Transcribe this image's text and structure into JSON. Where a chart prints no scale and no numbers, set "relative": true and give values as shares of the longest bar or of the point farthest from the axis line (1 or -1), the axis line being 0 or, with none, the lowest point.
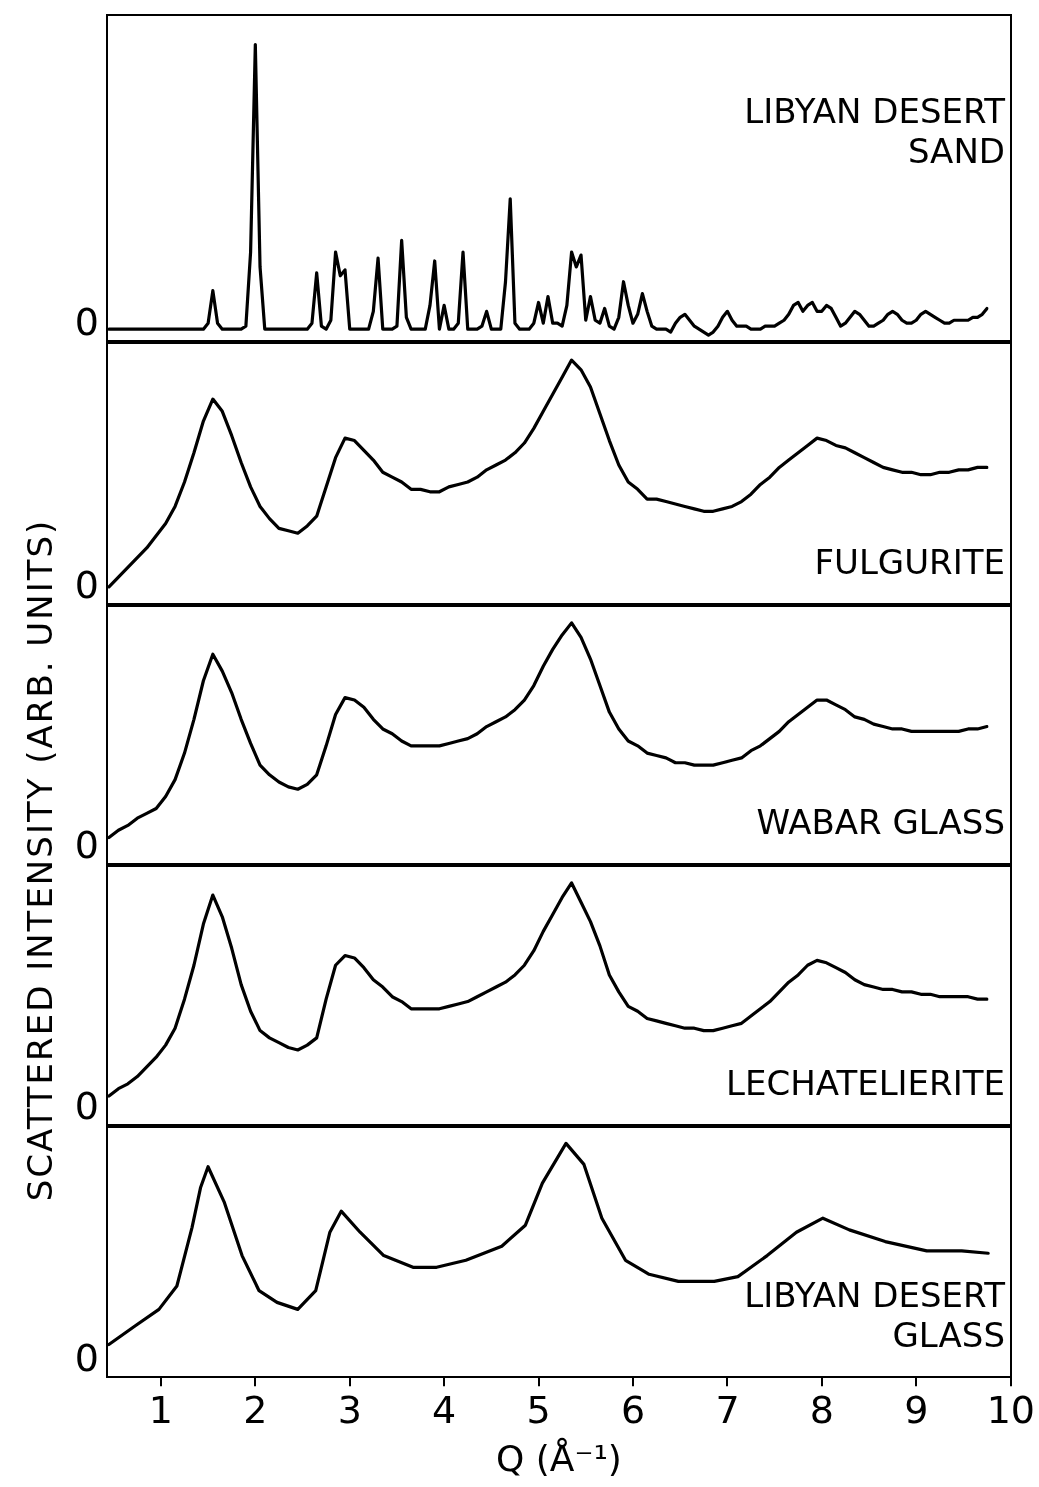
{
  "chart_data": [
    {
      "type": "line",
      "relative": true,
      "tick_labels": false,
      "annotations": [
        "0"
      ],
      "categories": [
        null,
        null,
        null,
        null,
        null,
        null,
        null,
        null,
        null,
        null,
        null,
        null,
        null,
        null,
        null,
        null,
        null,
        null,
        null,
        null,
        null,
        null,
        null,
        null,
        null,
        null,
        null,
        null,
        null,
        null,
        null,
        null,
        null,
        null,
        null,
        null,
        null,
        null,
        null,
        null,
        null,
        null,
        null,
        null,
        null,
        null,
        null,
        null,
        null,
        null,
        null,
        null,
        null,
        null,
        null,
        null,
        null,
        null,
        null,
        null,
        null,
        null,
        null,
        null,
        null,
        null,
        null,
        null,
        null,
        null,
        null,
        null,
        null,
        null,
        null,
        null,
        null,
        null,
        null,
        null,
        null,
        null,
        null,
        null,
        null,
        null,
        null,
        null,
        null,
        null,
        null,
        null,
        null,
        null,
        null,
        null,
        null,
        null,
        null,
        null,
        null,
        null,
        null,
        null,
        null,
        null,
        null,
        null,
        null,
        null,
        null,
        null,
        null,
        null,
        null,
        null,
        null,
        null,
        null,
        null,
        null,
        null,
        null,
        null,
        null,
        null,
        null,
        null,
        null,
        null,
        null,
        null,
        null,
        null,
        null,
        null,
        null,
        null,
        null,
        null,
        null,
        null,
        null,
        null,
        null,
        null,
        null,
        null,
        null,
        null,
        null,
        null,
        null,
        null,
        null,
        null,
        null,
        null,
        null,
        null,
        null,
        null,
        null,
        null,
        null,
        null,
        null,
        null,
        null,
        null,
        null,
        null,
        null,
        null,
        null,
        null,
        null,
        null,
        null,
        null,
        null,
        null,
        null,
        null,
        null,
        null,
        null
      ],
      "series": [
        {
          "name": "LIBYAN DESERT SAND",
          "color": "#000000",
          "values": [
            0.04,
            0.04,
            0.04,
            0.04,
            0.04,
            0.04,
            0.04,
            0.04,
            0.04,
            0.04,
            0.04,
            0.04,
            0.04,
            0.04,
            0.04,
            0.04,
            0.04,
            0.04,
            0.04,
            0.04,
            0.04,
            0.06,
            0.17,
            0.06,
            0.04,
            0.04,
            0.04,
            0.04,
            0.04,
            0.05,
            0.3,
            1.0,
            0.25,
            0.04,
            0.04,
            0.04,
            0.04,
            0.04,
            0.04,
            0.04,
            0.04,
            0.04,
            0.04,
            0.06,
            0.23,
            0.05,
            0.04,
            0.07,
            0.3,
            0.22,
            0.24,
            0.04,
            0.04,
            0.04,
            0.04,
            0.04,
            0.1,
            0.28,
            0.04,
            0.04,
            0.04,
            0.05,
            0.34,
            0.08,
            0.04,
            0.04,
            0.04,
            0.04,
            0.12,
            0.27,
            0.04,
            0.12,
            0.04,
            0.04,
            0.06,
            0.3,
            0.04,
            0.04,
            0.04,
            0.05,
            0.1,
            0.04,
            0.04,
            0.04,
            0.2,
            0.48,
            0.06,
            0.04,
            0.04,
            0.04,
            0.06,
            0.13,
            0.06,
            0.15,
            0.06,
            0.06,
            0.05,
            0.12,
            0.3,
            0.25,
            0.29,
            0.07,
            0.15,
            0.07,
            0.06,
            0.11,
            0.05,
            0.04,
            0.08,
            0.2,
            0.12,
            0.06,
            0.09,
            0.16,
            0.1,
            0.05,
            0.04,
            0.04,
            0.04,
            0.03,
            0.06,
            0.08,
            0.09,
            0.07,
            0.05,
            0.04,
            0.03,
            0.02,
            0.03,
            0.05,
            0.08,
            0.1,
            0.07,
            0.05,
            0.05,
            0.05,
            0.04,
            0.04,
            0.04,
            0.05,
            0.05,
            0.05,
            0.06,
            0.07,
            0.09,
            0.12,
            0.13,
            0.1,
            0.12,
            0.13,
            0.1,
            0.1,
            0.12,
            0.11,
            0.08,
            0.05,
            0.06,
            0.08,
            0.1,
            0.09,
            0.07,
            0.05,
            0.05,
            0.06,
            0.07,
            0.09,
            0.1,
            0.09,
            0.07,
            0.06,
            0.06,
            0.07,
            0.09,
            0.1,
            0.09,
            0.08,
            0.07,
            0.06,
            0.06,
            0.07,
            0.07,
            0.07,
            0.07,
            0.08,
            0.08,
            0.09,
            0.11
          ]
        }
      ]
    },
    {
      "type": "line",
      "relative": true,
      "tick_labels": false,
      "annotations": [
        "0"
      ],
      "categories": [
        null,
        null,
        null,
        null,
        null,
        null,
        null,
        null,
        null,
        null,
        null,
        null,
        null,
        null,
        null,
        null,
        null,
        null,
        null,
        null,
        null,
        null,
        null,
        null,
        null,
        null,
        null,
        null,
        null,
        null,
        null,
        null,
        null,
        null,
        null,
        null,
        null,
        null,
        null,
        null,
        null,
        null,
        null,
        null,
        null,
        null,
        null,
        null,
        null,
        null,
        null,
        null,
        null,
        null,
        null,
        null,
        null,
        null,
        null,
        null,
        null,
        null,
        null,
        null,
        null,
        null,
        null,
        null,
        null,
        null,
        null,
        null,
        null,
        null,
        null,
        null,
        null,
        null,
        null,
        null,
        null,
        null,
        null,
        null,
        null,
        null,
        null,
        null,
        null,
        null,
        null,
        null,
        null,
        null
      ],
      "series": [
        {
          "name": "FULGURITE",
          "color": "#000000",
          "values": [
            0.07,
            0.11,
            0.15,
            0.19,
            0.23,
            0.28,
            0.33,
            0.4,
            0.5,
            0.62,
            0.75,
            0.84,
            0.79,
            0.69,
            0.58,
            0.48,
            0.4,
            0.35,
            0.31,
            0.3,
            0.29,
            0.32,
            0.36,
            0.48,
            0.6,
            0.68,
            0.67,
            0.63,
            0.59,
            0.54,
            0.52,
            0.5,
            0.47,
            0.47,
            0.46,
            0.46,
            0.48,
            0.49,
            0.5,
            0.52,
            0.55,
            0.57,
            0.59,
            0.62,
            0.66,
            0.72,
            0.79,
            0.86,
            0.93,
            1.0,
            0.96,
            0.89,
            0.78,
            0.67,
            0.57,
            0.5,
            0.47,
            0.43,
            0.43,
            0.42,
            0.41,
            0.4,
            0.39,
            0.38,
            0.38,
            0.39,
            0.4,
            0.42,
            0.45,
            0.49,
            0.52,
            0.56,
            0.59,
            0.62,
            0.65,
            0.68,
            0.67,
            0.65,
            0.64,
            0.62,
            0.6,
            0.58,
            0.56,
            0.55,
            0.54,
            0.54,
            0.53,
            0.53,
            0.54,
            0.54,
            0.55,
            0.55,
            0.56,
            0.56
          ]
        }
      ]
    },
    {
      "type": "line",
      "relative": true,
      "tick_labels": false,
      "annotations": [
        "0"
      ],
      "ylabel": "SCATTERED  INTENSITY  (ARB.  UNITS)",
      "categories": [
        null,
        null,
        null,
        null,
        null,
        null,
        null,
        null,
        null,
        null,
        null,
        null,
        null,
        null,
        null,
        null,
        null,
        null,
        null,
        null,
        null,
        null,
        null,
        null,
        null,
        null,
        null,
        null,
        null,
        null,
        null,
        null,
        null,
        null,
        null,
        null,
        null,
        null,
        null,
        null,
        null,
        null,
        null,
        null,
        null,
        null,
        null,
        null,
        null,
        null,
        null,
        null,
        null,
        null,
        null,
        null,
        null,
        null,
        null,
        null,
        null,
        null,
        null,
        null,
        null,
        null,
        null,
        null,
        null,
        null,
        null,
        null,
        null,
        null,
        null,
        null,
        null,
        null,
        null,
        null,
        null,
        null,
        null,
        null,
        null,
        null,
        null,
        null,
        null,
        null,
        null,
        null,
        null,
        null
      ],
      "series": [
        {
          "name": "WABAR GLASS",
          "color": "#000000",
          "values": [
            0.11,
            0.14,
            0.16,
            0.19,
            0.21,
            0.23,
            0.28,
            0.35,
            0.46,
            0.6,
            0.76,
            0.87,
            0.8,
            0.71,
            0.6,
            0.5,
            0.41,
            0.37,
            0.34,
            0.32,
            0.31,
            0.33,
            0.37,
            0.49,
            0.62,
            0.69,
            0.68,
            0.65,
            0.6,
            0.56,
            0.54,
            0.51,
            0.49,
            0.49,
            0.49,
            0.49,
            0.5,
            0.51,
            0.52,
            0.54,
            0.57,
            0.59,
            0.61,
            0.64,
            0.68,
            0.74,
            0.82,
            0.89,
            0.95,
            1.0,
            0.94,
            0.85,
            0.74,
            0.63,
            0.56,
            0.51,
            0.49,
            0.46,
            0.45,
            0.44,
            0.42,
            0.42,
            0.41,
            0.41,
            0.41,
            0.42,
            0.43,
            0.44,
            0.47,
            0.49,
            0.52,
            0.55,
            0.59,
            0.62,
            0.65,
            0.68,
            0.68,
            0.66,
            0.64,
            0.61,
            0.6,
            0.58,
            0.57,
            0.56,
            0.56,
            0.55,
            0.55,
            0.55,
            0.55,
            0.55,
            0.55,
            0.56,
            0.56,
            0.57
          ]
        }
      ]
    },
    {
      "type": "line",
      "relative": true,
      "tick_labels": false,
      "annotations": [
        "0"
      ],
      "categories": [
        null,
        null,
        null,
        null,
        null,
        null,
        null,
        null,
        null,
        null,
        null,
        null,
        null,
        null,
        null,
        null,
        null,
        null,
        null,
        null,
        null,
        null,
        null,
        null,
        null,
        null,
        null,
        null,
        null,
        null,
        null,
        null,
        null,
        null,
        null,
        null,
        null,
        null,
        null,
        null,
        null,
        null,
        null,
        null,
        null,
        null,
        null,
        null,
        null,
        null,
        null,
        null,
        null,
        null,
        null,
        null,
        null,
        null,
        null,
        null,
        null,
        null,
        null,
        null,
        null,
        null,
        null,
        null,
        null,
        null,
        null,
        null,
        null,
        null,
        null,
        null,
        null,
        null,
        null,
        null,
        null,
        null,
        null,
        null,
        null,
        null,
        null,
        null,
        null,
        null,
        null,
        null,
        null,
        null
      ],
      "series": [
        {
          "name": "LECHATELIERITE",
          "color": "#000000",
          "values": [
            0.12,
            0.15,
            0.17,
            0.2,
            0.24,
            0.28,
            0.33,
            0.4,
            0.52,
            0.66,
            0.83,
            0.95,
            0.86,
            0.73,
            0.58,
            0.47,
            0.39,
            0.36,
            0.34,
            0.32,
            0.31,
            0.33,
            0.36,
            0.52,
            0.66,
            0.7,
            0.69,
            0.65,
            0.6,
            0.57,
            0.53,
            0.51,
            0.48,
            0.48,
            0.48,
            0.48,
            0.49,
            0.5,
            0.51,
            0.53,
            0.55,
            0.57,
            0.59,
            0.62,
            0.66,
            0.72,
            0.8,
            0.87,
            0.94,
            1.0,
            0.92,
            0.84,
            0.74,
            0.62,
            0.55,
            0.49,
            0.47,
            0.44,
            0.43,
            0.42,
            0.41,
            0.4,
            0.4,
            0.39,
            0.39,
            0.4,
            0.41,
            0.42,
            0.45,
            0.48,
            0.51,
            0.55,
            0.59,
            0.62,
            0.66,
            0.68,
            0.67,
            0.65,
            0.63,
            0.6,
            0.58,
            0.57,
            0.56,
            0.56,
            0.55,
            0.55,
            0.54,
            0.54,
            0.53,
            0.53,
            0.53,
            0.53,
            0.52,
            0.52
          ]
        }
      ]
    },
    {
      "type": "line",
      "relative": true,
      "tick_labels": "x",
      "xlim": [
        0.43,
        10
      ],
      "xticks": [
        1,
        2,
        3,
        4,
        5,
        6,
        7,
        8,
        9,
        10
      ],
      "annotations": [
        "0"
      ],
      "xlabel": "Q (Å⁻¹)",
      "x": [
        0.45,
        0.73,
        0.98,
        1.17,
        1.33,
        1.42,
        1.5,
        1.67,
        1.86,
        2.04,
        2.23,
        2.45,
        2.64,
        2.79,
        2.91,
        3.11,
        3.36,
        3.67,
        3.92,
        4.23,
        4.61,
        4.86,
        5.04,
        5.29,
        5.48,
        5.67,
        5.92,
        6.17,
        6.48,
        6.86,
        7.11,
        7.42,
        7.73,
        8.01,
        8.29,
        8.67,
        9.11,
        9.48,
        9.76
      ],
      "series": [
        {
          "name": "LIBYAN DESERT GLASS",
          "color": "#000000",
          "values": [
            0.14,
            0.22,
            0.29,
            0.39,
            0.64,
            0.81,
            0.9,
            0.75,
            0.52,
            0.37,
            0.32,
            0.29,
            0.37,
            0.62,
            0.71,
            0.62,
            0.52,
            0.47,
            0.47,
            0.5,
            0.56,
            0.65,
            0.83,
            1.0,
            0.91,
            0.68,
            0.5,
            0.44,
            0.41,
            0.41,
            0.43,
            0.52,
            0.62,
            0.68,
            0.63,
            0.58,
            0.54,
            0.54,
            0.53
          ]
        }
      ]
    }
  ]
}
